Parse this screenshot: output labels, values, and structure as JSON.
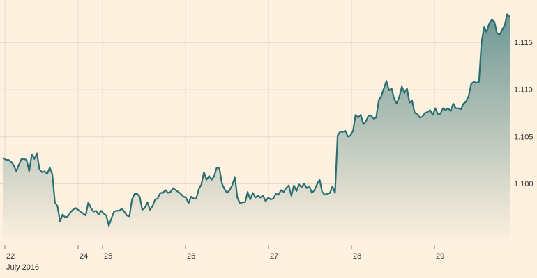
{
  "chart_data": {
    "type": "area",
    "title": "",
    "xlabel": "",
    "ylabel": "",
    "x_tick_labels": [
      "22",
      "24",
      "25",
      "26",
      "27",
      "28",
      "29"
    ],
    "x_sub_label": "July 2016",
    "y_tick_labels": [
      "1.100",
      "1.105",
      "1.110",
      "1.115"
    ],
    "y_ticks": [
      1.1,
      1.105,
      1.11,
      1.115
    ],
    "y_axis_position": "right",
    "ylim": [
      1.0935,
      1.1195
    ],
    "grid": true,
    "colors": {
      "background": "#fff1e0",
      "grid": "#e6d9ce",
      "line": "#2b6f73",
      "fill_top": "#6e9894",
      "fill_bottom": "#fff1e0"
    },
    "series": [
      {
        "values": [
          1.1027,
          1.1025,
          1.1025,
          1.1023,
          1.1019,
          1.1013,
          1.102,
          1.1026,
          1.1026,
          1.1025,
          1.1013,
          1.1031,
          1.1026,
          1.1032,
          1.1015,
          1.1012,
          1.1013,
          1.101,
          1.1017,
          1.101,
          1.098,
          1.0976,
          1.096,
          1.0967,
          1.0964,
          1.0965,
          1.0969,
          1.0972,
          1.0974,
          1.0972,
          1.097,
          1.0968,
          1.0966,
          1.098,
          1.0974,
          1.097,
          1.0971,
          1.0967,
          1.0971,
          1.0968,
          1.0966,
          1.0955,
          1.0963,
          1.097,
          1.0971,
          1.0971,
          1.0973,
          1.097,
          1.0966,
          1.0965,
          1.0983,
          1.0989,
          1.0989,
          1.0986,
          1.0972,
          1.0974,
          1.098,
          1.0972,
          1.0976,
          1.0983,
          1.0984,
          1.099,
          1.099,
          1.0993,
          1.099,
          1.0991,
          1.0995,
          1.0993,
          1.0991,
          1.0989,
          1.0986,
          1.0985,
          1.0979,
          1.0986,
          1.0984,
          1.0984,
          1.0994,
          1.0999,
          1.1012,
          1.1004,
          1.1008,
          1.1004,
          1.1008,
          1.1017,
          1.1016,
          1.1,
          1.0994,
          1.099,
          1.0993,
          1.0998,
          1.1007,
          1.0985,
          1.0979,
          1.098,
          1.098,
          1.0991,
          1.0983,
          1.099,
          1.0985,
          1.0987,
          1.0985,
          1.0987,
          1.0981,
          1.0985,
          1.0983,
          1.0984,
          1.0989,
          1.0988,
          1.0993,
          1.0991,
          1.0995,
          1.0998,
          1.0987,
          1.0998,
          1.0992,
          1.0999,
          1.0996,
          1.1,
          1.0995,
          1.0997,
          1.099,
          1.0993,
          1.0999,
          1.1004,
          1.0991,
          1.0988,
          1.0989,
          1.099,
          1.0997,
          1.099,
          1.1051,
          1.1055,
          1.1055,
          1.1056,
          1.105,
          1.1051,
          1.1056,
          1.1073,
          1.107,
          1.1073,
          1.1063,
          1.1066,
          1.1072,
          1.1072,
          1.1069,
          1.107,
          1.1088,
          1.1093,
          1.1101,
          1.1109,
          1.1099,
          1.1101,
          1.109,
          1.1085,
          1.1092,
          1.1103,
          1.1096,
          1.1101,
          1.1086,
          1.1088,
          1.1075,
          1.1074,
          1.107,
          1.1071,
          1.1075,
          1.1076,
          1.1078,
          1.1073,
          1.108,
          1.1074,
          1.1074,
          1.108,
          1.1078,
          1.108,
          1.1077,
          1.1085,
          1.108,
          1.108,
          1.1079,
          1.1085,
          1.1087,
          1.1093,
          1.1106,
          1.1108,
          1.1107,
          1.1108,
          1.115,
          1.1166,
          1.1161,
          1.117,
          1.1174,
          1.1172,
          1.116,
          1.1158,
          1.1163,
          1.1168,
          1.118,
          1.1177
        ]
      }
    ]
  }
}
